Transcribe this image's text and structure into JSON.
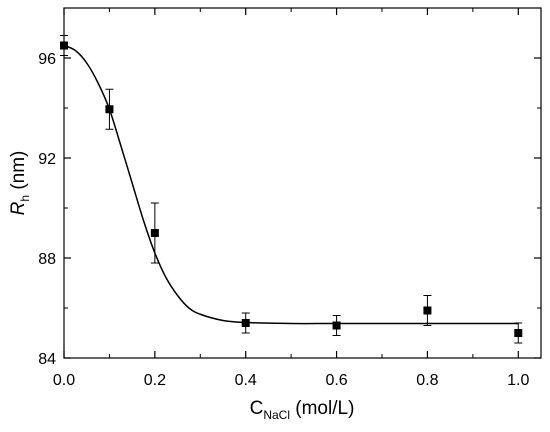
{
  "chart_data": {
    "type": "scatter",
    "title": "",
    "xlabel": {
      "main": "C",
      "sub": "NaCl",
      "suffix": " (mol/L)"
    },
    "ylabel": {
      "main": "R",
      "sub": "h",
      "suffix": " (nm)"
    },
    "xlim": [
      0.0,
      1.05
    ],
    "ylim": [
      84,
      98
    ],
    "xticks": [
      0.0,
      0.2,
      0.4,
      0.6,
      0.8,
      1.0
    ],
    "xtick_labels": [
      "0.0",
      "0.2",
      "0.4",
      "0.6",
      "0.8",
      "1.0"
    ],
    "yticks": [
      84,
      88,
      92,
      96
    ],
    "ytick_labels": [
      "84",
      "88",
      "92",
      "96"
    ],
    "grid": false,
    "legend": "none",
    "series": [
      {
        "marker": "square",
        "color": "#000000",
        "points": [
          {
            "x": 0.0,
            "y": 96.5,
            "err": 0.4
          },
          {
            "x": 0.1,
            "y": 93.95,
            "err": 0.8
          },
          {
            "x": 0.2,
            "y": 89.0,
            "err": 1.2
          },
          {
            "x": 0.4,
            "y": 85.4,
            "err": 0.4
          },
          {
            "x": 0.6,
            "y": 85.3,
            "err": 0.4
          },
          {
            "x": 0.8,
            "y": 85.9,
            "err": 0.6
          },
          {
            "x": 1.0,
            "y": 85.0,
            "err": 0.4
          }
        ]
      }
    ],
    "fit_curve": {
      "color": "#000000",
      "points": [
        [
          0.0,
          96.5
        ],
        [
          0.025,
          96.3
        ],
        [
          0.05,
          95.8
        ],
        [
          0.075,
          95.0
        ],
        [
          0.1,
          93.95
        ],
        [
          0.125,
          92.5
        ],
        [
          0.15,
          91.0
        ],
        [
          0.175,
          89.5
        ],
        [
          0.2,
          88.2
        ],
        [
          0.225,
          87.2
        ],
        [
          0.25,
          86.5
        ],
        [
          0.275,
          86.0
        ],
        [
          0.3,
          85.75
        ],
        [
          0.35,
          85.5
        ],
        [
          0.4,
          85.42
        ],
        [
          0.5,
          85.38
        ],
        [
          0.6,
          85.38
        ],
        [
          0.8,
          85.38
        ],
        [
          1.0,
          85.38
        ]
      ]
    }
  }
}
